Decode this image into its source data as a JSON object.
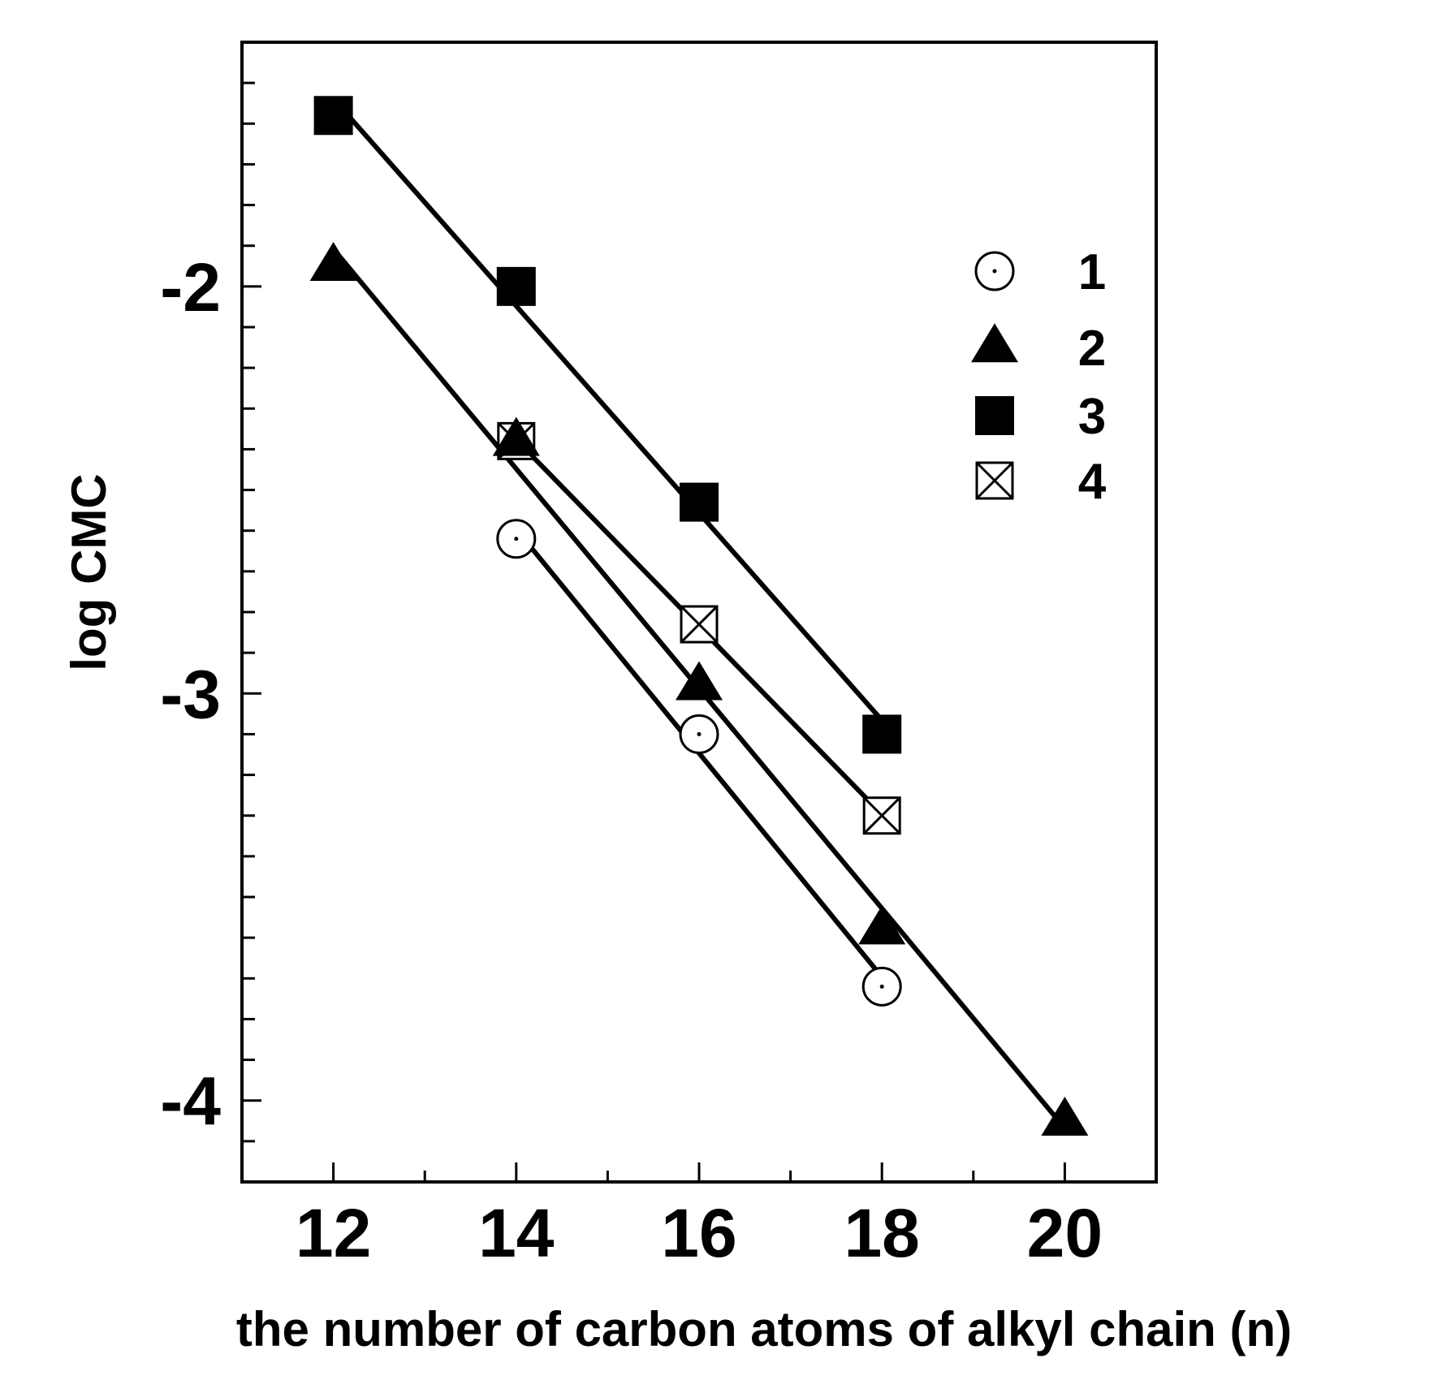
{
  "chart_data": {
    "type": "scatter",
    "xlabel": "the number of carbon atoms of alkyl chain (n)",
    "ylabel": "log CMC",
    "xlim": [
      11,
      21
    ],
    "ylim": [
      -4.2,
      -1.4
    ],
    "xticks_major": [
      12,
      14,
      16,
      18,
      20
    ],
    "xtick_labels": [
      "12",
      "14",
      "16",
      "18",
      "20"
    ],
    "yticks_major": [
      -4,
      -3,
      -2
    ],
    "ytick_labels": [
      "-4",
      "-3",
      "-2"
    ],
    "grid": false,
    "legend_position": "upper-right",
    "series": [
      {
        "name": "1",
        "marker": "circle-dot",
        "x": [
          14,
          16,
          18
        ],
        "y": [
          -2.62,
          -3.1,
          -3.72
        ],
        "fit": true
      },
      {
        "name": "2",
        "marker": "triangle",
        "x": [
          12,
          14,
          16,
          18,
          20
        ],
        "y": [
          -1.95,
          -2.38,
          -2.98,
          -3.58,
          -4.05
        ],
        "fit": true
      },
      {
        "name": "3",
        "marker": "filled-square",
        "x": [
          12,
          14,
          16,
          18
        ],
        "y": [
          -1.58,
          -2.0,
          -2.53,
          -3.1
        ],
        "fit": true
      },
      {
        "name": "4",
        "marker": "crossed-square",
        "x": [
          14,
          16,
          18
        ],
        "y": [
          -2.38,
          -2.83,
          -3.3
        ],
        "fit": true
      }
    ]
  }
}
